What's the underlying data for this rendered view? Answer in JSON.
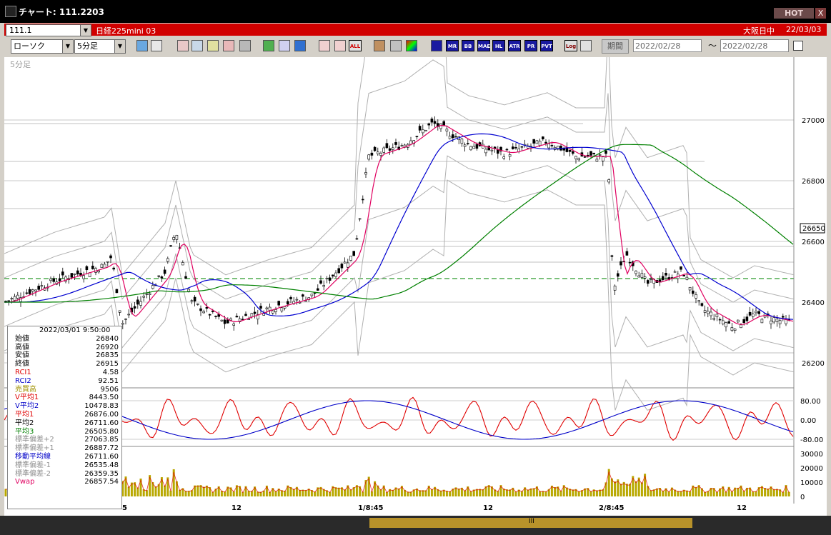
{
  "window": {
    "title": "チャート: 111.2203",
    "hot_label": "HOT",
    "close_label": "X"
  },
  "symbol_bar": {
    "code": "111.1",
    "product": "日経225mini 03",
    "market": "大阪日中",
    "date": "22/03/03"
  },
  "toolbar": {
    "chart_type": "ローソク",
    "interval": "5分足",
    "text_buttons": [
      "ALL",
      "MR",
      "BB",
      "MAE",
      "HL",
      "ATR",
      "PR",
      "PVT",
      "Log"
    ],
    "period_label": "期間",
    "date_from": "2022/02/28",
    "range_sep": "〜",
    "date_to": "2022/02/28"
  },
  "chart": {
    "interval_label": "5分足",
    "current_price_label": "26650",
    "price_axis": [
      "27000",
      "26800",
      "26600",
      "26400",
      "26200"
    ],
    "rci_axis": [
      "80.00",
      "0.00",
      "-80.00"
    ],
    "volume_axis": [
      "30000",
      "20000",
      "10000",
      "0"
    ],
    "x_labels": [
      "5",
      "12",
      "1/8:45",
      "12",
      "2/8:45",
      "12"
    ],
    "colors": {
      "rci1": "#e00000",
      "rci2": "#0000c8",
      "ma1": "#e00060",
      "ma2": "#0000d0",
      "ma3": "#008000",
      "bands": "#b0b0b0",
      "volume": "#b8a800"
    }
  },
  "info_panel": {
    "timestamp": "2022/03/01 9:50:00",
    "rows": [
      {
        "label": "始値",
        "value": "26840",
        "color": "#000000"
      },
      {
        "label": "高値",
        "value": "26920",
        "color": "#000000"
      },
      {
        "label": "安値",
        "value": "26835",
        "color": "#000000"
      },
      {
        "label": "終値",
        "value": "26915",
        "color": "#000000"
      },
      {
        "label": "RCI1",
        "value": "4.58",
        "color": "#e00000"
      },
      {
        "label": "RCI2",
        "value": "92.51",
        "color": "#0000c8"
      },
      {
        "label": "売買高",
        "value": "9506",
        "color": "#a09000"
      },
      {
        "label": "V平均1",
        "value": "8443.50",
        "color": "#e00000"
      },
      {
        "label": "V平均2",
        "value": "10478.83",
        "color": "#0000c8"
      },
      {
        "label": "平均1",
        "value": "26876.00",
        "color": "#e00000"
      },
      {
        "label": "平均2",
        "value": "26711.60",
        "color": "#000000"
      },
      {
        "label": "平均3",
        "value": "26505.80",
        "color": "#008000"
      },
      {
        "label": "標準偏差+2",
        "value": "27063.85",
        "color": "#909090"
      },
      {
        "label": "標準偏差+1",
        "value": "26887.72",
        "color": "#909090"
      },
      {
        "label": "移動平均線",
        "value": "26711.60",
        "color": "#0000c8"
      },
      {
        "label": "標準偏差-1",
        "value": "26535.48",
        "color": "#909090"
      },
      {
        "label": "標準偏差-2",
        "value": "26359.35",
        "color": "#909090"
      },
      {
        "label": "Vwap",
        "value": "26857.54",
        "color": "#e00060"
      }
    ]
  },
  "scrollbar": {
    "thumb_label": "III"
  }
}
